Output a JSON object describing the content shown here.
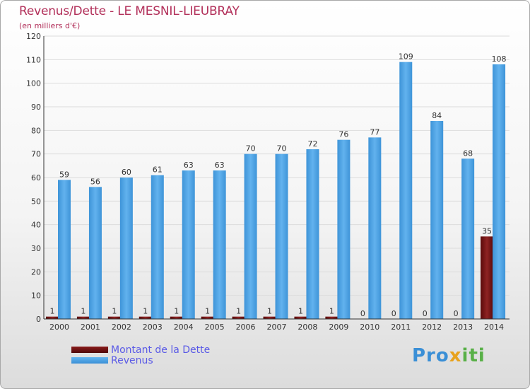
{
  "header": {
    "title": "Revenus/Dette - LE MESNIL-LIEUBRAY",
    "subtitle": "(en milliers d'€)"
  },
  "legend": {
    "items": [
      {
        "label": "Montant de la Dette",
        "color": "#6b0d0d"
      },
      {
        "label": "Revenus",
        "color": "#4aa3e6"
      }
    ]
  },
  "logo": {
    "text": "Proxiti",
    "parts": [
      "Pro",
      "x",
      "iti"
    ]
  },
  "chart_data": {
    "type": "bar",
    "title": "Revenus/Dette - LE MESNIL-LIEUBRAY",
    "ylabel": "(en milliers d'€)",
    "xlabel": "",
    "ylim": [
      0,
      120
    ],
    "yticks": [
      0,
      10,
      20,
      30,
      40,
      50,
      60,
      70,
      80,
      90,
      100,
      110,
      120
    ],
    "grid": true,
    "categories": [
      "2000",
      "2001",
      "2002",
      "2003",
      "2004",
      "2005",
      "2006",
      "2007",
      "2008",
      "2009",
      "2010",
      "2011",
      "2012",
      "2013",
      "2014"
    ],
    "series": [
      {
        "name": "Montant de la Dette",
        "color": "#6b0d0d",
        "values": [
          1,
          1,
          1,
          1,
          1,
          1,
          1,
          1,
          1,
          1,
          0,
          0,
          0,
          0,
          35
        ]
      },
      {
        "name": "Revenus",
        "color": "#4aa3e6",
        "values": [
          59,
          56,
          60,
          61,
          63,
          63,
          70,
          70,
          72,
          76,
          77,
          109,
          84,
          68,
          108
        ]
      }
    ]
  }
}
